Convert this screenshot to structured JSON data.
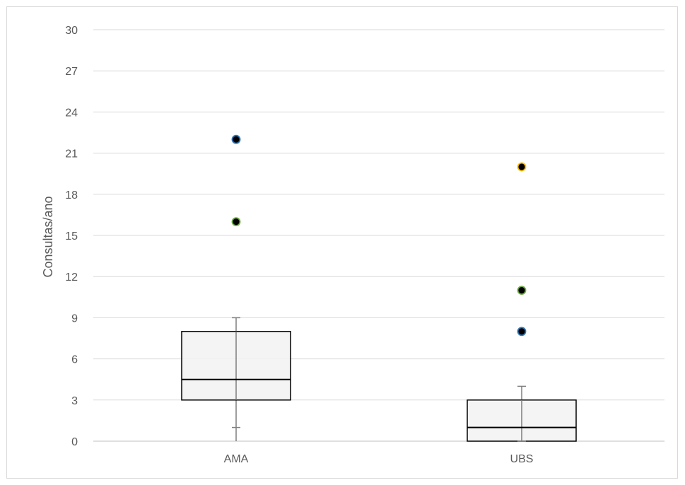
{
  "chart_data": {
    "type": "box",
    "title": "",
    "xlabel": "",
    "ylabel": "Consultas/ano",
    "ylim": [
      0,
      30
    ],
    "yticks": [
      0,
      3,
      6,
      9,
      12,
      15,
      18,
      21,
      24,
      27,
      30
    ],
    "grid": true,
    "categories": [
      "AMA",
      "UBS"
    ],
    "boxes": [
      {
        "category": "AMA",
        "whisker_low": 1,
        "q1": 3,
        "median": 4.5,
        "q3": 8,
        "whisker_high": 9,
        "min_line": 0,
        "outliers": [
          {
            "value": 22,
            "color": "#2e75b6"
          },
          {
            "value": 16,
            "color": "#70ad47"
          }
        ]
      },
      {
        "category": "UBS",
        "whisker_low": 0,
        "q1": 0,
        "median": 1,
        "q3": 3,
        "whisker_high": 4,
        "min_line": 0,
        "outliers": [
          {
            "value": 20,
            "color": "#ffc000"
          },
          {
            "value": 11,
            "color": "#70ad47"
          },
          {
            "value": 8,
            "color": "#2e75b6"
          }
        ]
      }
    ],
    "colors": {
      "box_fill": "#f2f2f2",
      "box_stroke": "#000000",
      "whisker": "#7f7f7f",
      "grid": "#d9d9d9",
      "outlier_fill": "#000000"
    }
  }
}
